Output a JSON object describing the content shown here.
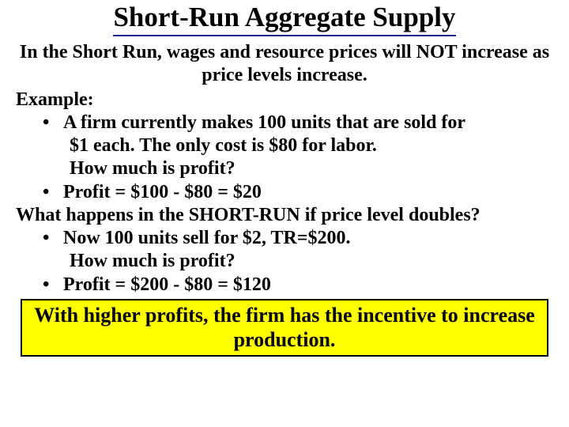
{
  "colors": {
    "background": "#ffffff",
    "text": "#000000",
    "title_underline": "#1a1a8a",
    "callout_bg": "#ffff00",
    "callout_border": "#000000"
  },
  "typography": {
    "family": "Times New Roman, serif",
    "title_size_pt": 35,
    "body_size_pt": 24,
    "callout_size_pt": 26,
    "weight": "bold"
  },
  "title": "Short-Run Aggregate Supply",
  "intro": "In the Short Run, wages and resource prices will NOT increase as price levels increase.",
  "example_label": "Example:",
  "bullets1": {
    "b1_line1": "A firm currently makes 100 units that are sold for",
    "b1_line2": "$1 each.  The only cost is $80 for labor.",
    "b1_line3": "How much is profit?",
    "b2": "Profit = $100 - $80 = $20"
  },
  "question": "What happens in the SHORT-RUN if price level doubles?",
  "bullets2": {
    "b3_line1": "Now 100 units sell for $2, TR=$200.",
    "b3_line2": "How much is profit?",
    "b4": "Profit = $200 - $80 = $120"
  },
  "callout": "With higher profits, the firm has the incentive to increase production."
}
